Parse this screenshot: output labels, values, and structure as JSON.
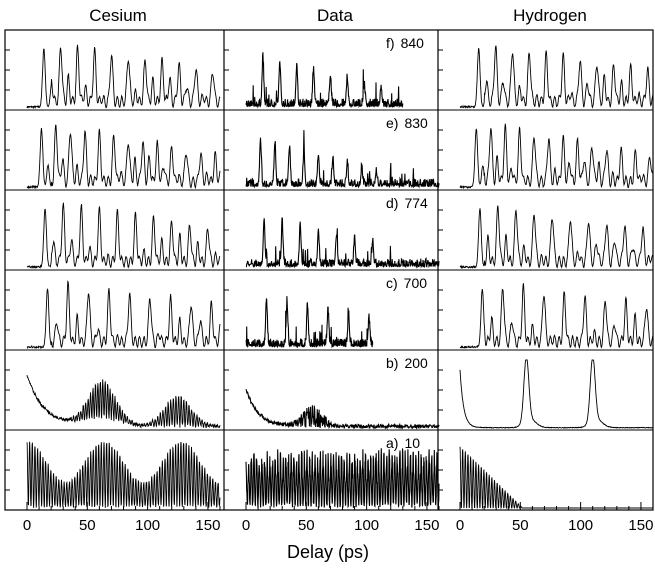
{
  "chart_data": {
    "type": "line",
    "xlabel": "Delay (ps)",
    "columns": [
      "Cesium",
      "Data",
      "Hydrogen"
    ],
    "rows": [
      {
        "label": "f)",
        "value": "840"
      },
      {
        "label": "e)",
        "value": "830"
      },
      {
        "label": "d)",
        "value": "774"
      },
      {
        "label": "c)",
        "value": "700"
      },
      {
        "label": "b)",
        "value": "200"
      },
      {
        "label": "a)",
        "value": "10"
      }
    ],
    "xlim": [
      0,
      160
    ],
    "x_ticks": [
      "0",
      "50",
      "100",
      "150"
    ],
    "data_extent_ps": {
      "Data": [
        130,
        160,
        160,
        105,
        160,
        160
      ],
      "Hydrogen": [
        160,
        160,
        160,
        160,
        160,
        52
      ]
    },
    "line_color": "#000000"
  }
}
